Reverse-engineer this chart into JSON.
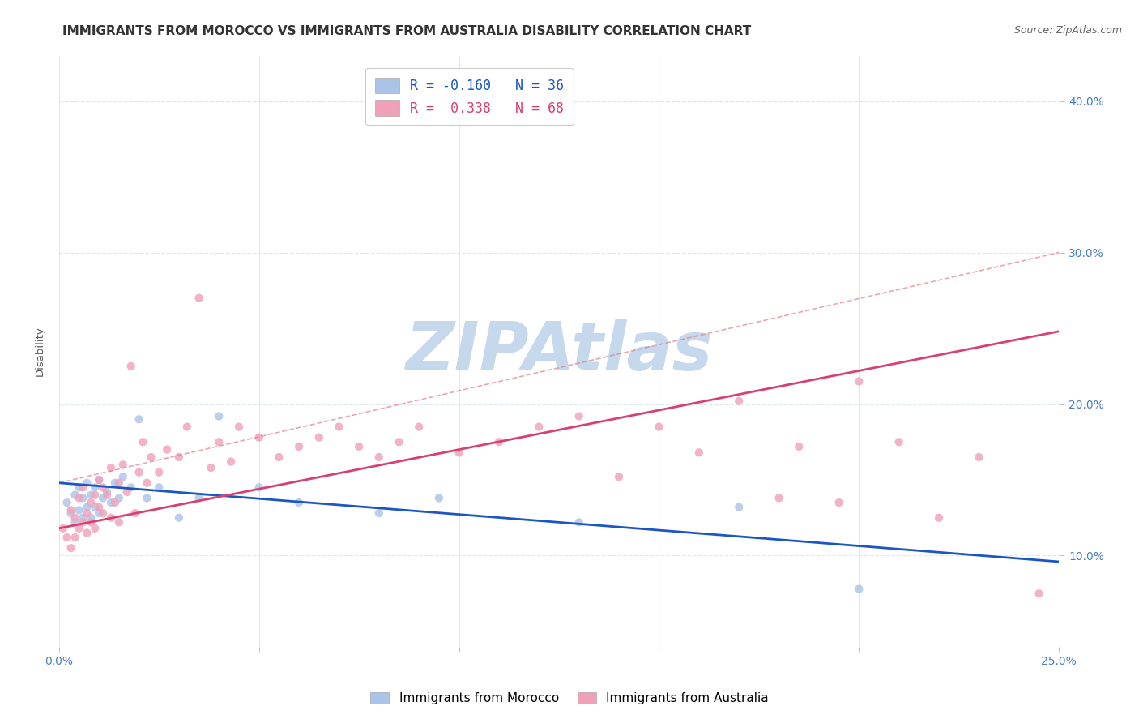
{
  "title": "IMMIGRANTS FROM MOROCCO VS IMMIGRANTS FROM AUSTRALIA DISABILITY CORRELATION CHART",
  "source": "Source: ZipAtlas.com",
  "xlim": [
    0.0,
    0.25
  ],
  "ylim": [
    0.04,
    0.43
  ],
  "yticks": [
    0.1,
    0.2,
    0.3,
    0.4
  ],
  "ytick_labels": [
    "10.0%",
    "20.0%",
    "30.0%",
    "40.0%"
  ],
  "xticks": [
    0.0,
    0.05,
    0.1,
    0.15,
    0.2,
    0.25
  ],
  "xtick_labels": [
    "0.0%",
    "",
    "",
    "",
    "",
    "25.0%"
  ],
  "series": [
    {
      "name": "Immigrants from Morocco",
      "R": -0.16,
      "N": 36,
      "color_scatter": "#aac4e8",
      "color_line": "#1a56c4",
      "x": [
        0.002,
        0.003,
        0.004,
        0.004,
        0.005,
        0.005,
        0.006,
        0.006,
        0.007,
        0.007,
        0.008,
        0.008,
        0.009,
        0.009,
        0.01,
        0.01,
        0.011,
        0.012,
        0.013,
        0.014,
        0.015,
        0.016,
        0.018,
        0.02,
        0.022,
        0.025,
        0.03,
        0.035,
        0.04,
        0.05,
        0.06,
        0.08,
        0.095,
        0.13,
        0.17,
        0.2
      ],
      "y": [
        0.135,
        0.128,
        0.122,
        0.14,
        0.13,
        0.145,
        0.125,
        0.138,
        0.132,
        0.148,
        0.125,
        0.14,
        0.132,
        0.145,
        0.128,
        0.15,
        0.138,
        0.142,
        0.135,
        0.148,
        0.138,
        0.152,
        0.145,
        0.19,
        0.138,
        0.145,
        0.125,
        0.138,
        0.192,
        0.145,
        0.135,
        0.128,
        0.138,
        0.122,
        0.132,
        0.078
      ]
    },
    {
      "name": "Immigrants from Australia",
      "R": 0.338,
      "N": 68,
      "color_scatter": "#f0a0b8",
      "color_line": "#d84070",
      "x": [
        0.001,
        0.002,
        0.003,
        0.003,
        0.004,
        0.004,
        0.005,
        0.005,
        0.006,
        0.006,
        0.007,
        0.007,
        0.008,
        0.008,
        0.009,
        0.009,
        0.01,
        0.01,
        0.011,
        0.011,
        0.012,
        0.013,
        0.013,
        0.014,
        0.015,
        0.015,
        0.016,
        0.017,
        0.018,
        0.019,
        0.02,
        0.021,
        0.022,
        0.023,
        0.025,
        0.027,
        0.03,
        0.032,
        0.035,
        0.038,
        0.04,
        0.043,
        0.045,
        0.05,
        0.055,
        0.06,
        0.065,
        0.07,
        0.075,
        0.08,
        0.085,
        0.09,
        0.1,
        0.11,
        0.12,
        0.13,
        0.15,
        0.17,
        0.185,
        0.195,
        0.2,
        0.21,
        0.22,
        0.23,
        0.245,
        0.14,
        0.16,
        0.18
      ],
      "y": [
        0.118,
        0.112,
        0.13,
        0.105,
        0.125,
        0.112,
        0.118,
        0.138,
        0.122,
        0.145,
        0.128,
        0.115,
        0.135,
        0.122,
        0.14,
        0.118,
        0.132,
        0.15,
        0.128,
        0.145,
        0.14,
        0.125,
        0.158,
        0.135,
        0.148,
        0.122,
        0.16,
        0.142,
        0.225,
        0.128,
        0.155,
        0.175,
        0.148,
        0.165,
        0.155,
        0.17,
        0.165,
        0.185,
        0.27,
        0.158,
        0.175,
        0.162,
        0.185,
        0.178,
        0.165,
        0.172,
        0.178,
        0.185,
        0.172,
        0.165,
        0.175,
        0.185,
        0.168,
        0.175,
        0.185,
        0.192,
        0.185,
        0.202,
        0.172,
        0.135,
        0.215,
        0.175,
        0.125,
        0.165,
        0.075,
        0.152,
        0.168,
        0.138
      ]
    }
  ],
  "trend_line_morocco": {
    "x0": 0.0,
    "y0": 0.148,
    "x1": 0.25,
    "y1": 0.096
  },
  "trend_line_australia": {
    "x0": 0.0,
    "y0": 0.118,
    "x1": 0.25,
    "y1": 0.248
  },
  "dashed_line": {
    "x0": 0.0,
    "y0": 0.148,
    "x1": 0.25,
    "y1": 0.3
  },
  "watermark": "ZIPAtlas",
  "watermark_color": "#c5d8ec",
  "background_color": "#ffffff",
  "grid_color": "#dde8f0",
  "title_color": "#333333",
  "axis_color": "#4a7fc0",
  "title_fontsize": 11,
  "source_fontsize": 9,
  "tick_fontsize": 10,
  "ylabel": "Disability"
}
